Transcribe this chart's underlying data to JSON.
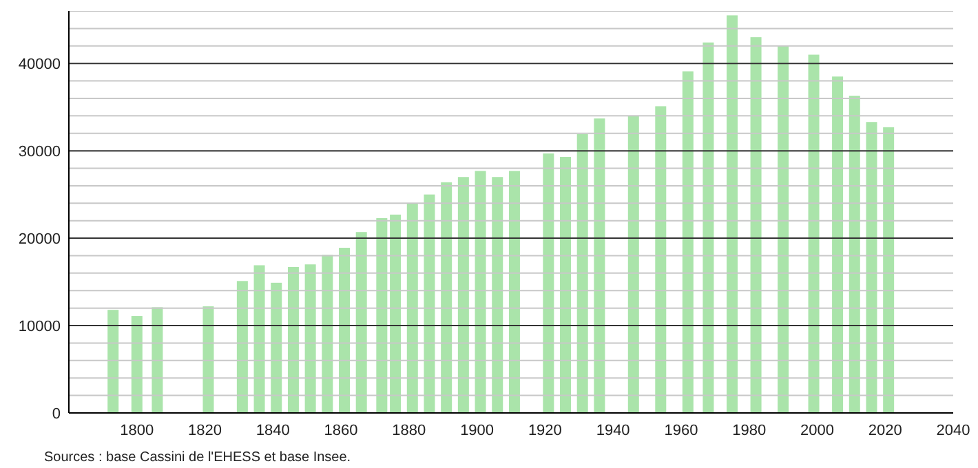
{
  "chart_data": {
    "type": "bar",
    "x": [
      1793,
      1800,
      1806,
      1821,
      1831,
      1836,
      1841,
      1846,
      1851,
      1856,
      1861,
      1866,
      1872,
      1876,
      1881,
      1886,
      1891,
      1896,
      1901,
      1906,
      1911,
      1921,
      1926,
      1931,
      1936,
      1946,
      1954,
      1962,
      1968,
      1975,
      1982,
      1990,
      1999,
      2006,
      2011,
      2016,
      2021
    ],
    "values": [
      11800,
      11100,
      12100,
      12200,
      15100,
      16900,
      14900,
      16700,
      17000,
      18100,
      18900,
      20700,
      22300,
      22700,
      24000,
      25000,
      26400,
      27000,
      27700,
      27000,
      27700,
      29700,
      29300,
      31900,
      33700,
      34000,
      35100,
      39100,
      42400,
      45500,
      43000,
      42000,
      41000,
      38500,
      36300,
      33300,
      32700
    ],
    "color": "#aae4aa",
    "xlim": [
      1780,
      2040
    ],
    "xticks": [
      1800,
      1820,
      1840,
      1860,
      1880,
      1900,
      1920,
      1940,
      1960,
      1980,
      2000,
      2020,
      2040
    ],
    "ylim": [
      0,
      46000
    ],
    "yticks": [
      0,
      {
        "value": 2000,
        "label": null
      },
      {
        "value": 4000,
        "label": null
      },
      {
        "value": 6000,
        "label": null
      },
      {
        "value": 8000,
        "label": null
      },
      10000,
      {
        "value": 12000,
        "label": null
      },
      {
        "value": 14000,
        "label": null
      },
      {
        "value": 16000,
        "label": null
      },
      {
        "value": 18000,
        "label": null
      },
      20000,
      {
        "value": 22000,
        "label": null
      },
      {
        "value": 24000,
        "label": null
      },
      {
        "value": 26000,
        "label": null
      },
      {
        "value": 28000,
        "label": null
      },
      30000,
      {
        "value": 32000,
        "label": null
      },
      {
        "value": 34000,
        "label": null
      },
      {
        "value": 36000,
        "label": null
      },
      {
        "value": 38000,
        "label": null
      },
      40000,
      {
        "value": 42000,
        "label": null
      },
      {
        "value": 44000,
        "label": null
      },
      {
        "value": 46000,
        "label": null
      }
    ],
    "grid": "y",
    "legend": false,
    "annotations": [
      "Sources : base Cassini de l'EHESS et base Insee."
    ]
  }
}
